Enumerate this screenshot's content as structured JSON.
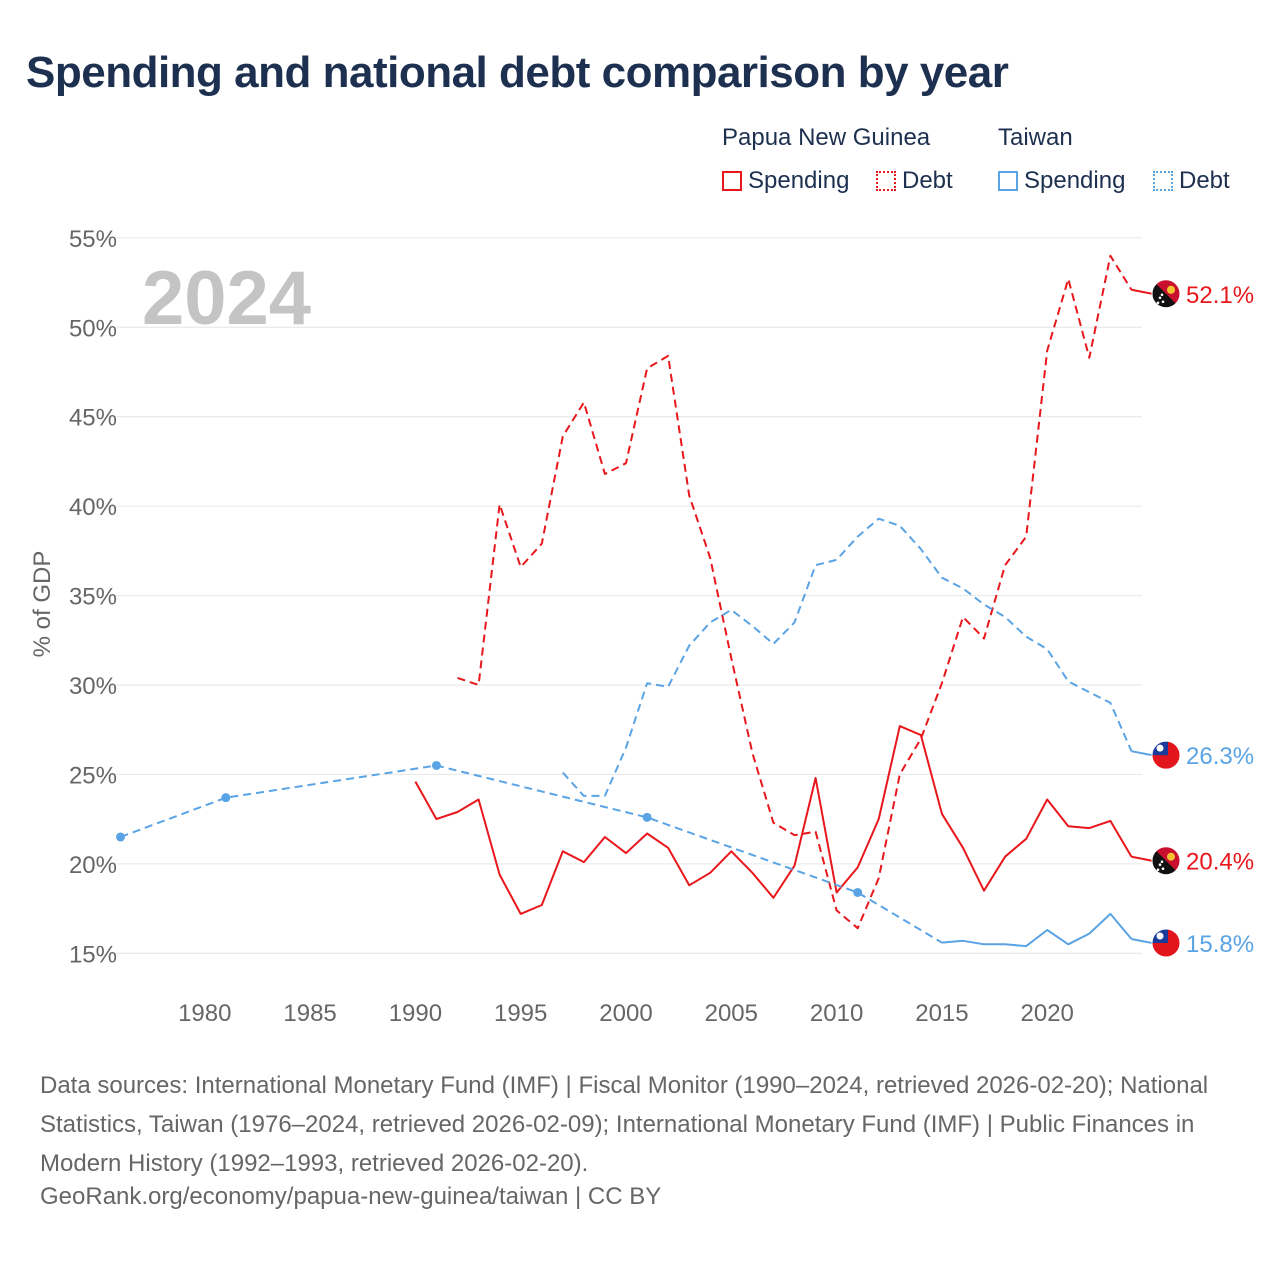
{
  "chart_data": {
    "type": "line",
    "title": "Spending and national debt comparison by year",
    "year_label": "2024",
    "ylabel": "% of GDP",
    "xlabel": "",
    "xlim": [
      1975.5,
      2024.5
    ],
    "ylim": [
      12.5,
      56
    ],
    "y_ticks": [
      15,
      20,
      25,
      30,
      35,
      40,
      45,
      50,
      55
    ],
    "y_tick_labels": [
      "15%",
      "20%",
      "25%",
      "30%",
      "35%",
      "40%",
      "45%",
      "50%",
      "55%"
    ],
    "x_ticks": [
      1980,
      1985,
      1990,
      1995,
      2000,
      2005,
      2010,
      2015,
      2020
    ],
    "x_tick_labels": [
      "1980",
      "1985",
      "1990",
      "1995",
      "2000",
      "2005",
      "2010",
      "2015",
      "2020"
    ],
    "grid": true,
    "legend": {
      "placement": "top-right",
      "groups": [
        {
          "name": "Papua New Guinea",
          "items": [
            "Spending",
            "Debt"
          ],
          "color": "#e8171c"
        },
        {
          "name": "Taiwan",
          "items": [
            "Spending",
            "Debt"
          ],
          "color": "#5aa3e4"
        }
      ]
    },
    "series": [
      {
        "name": "Papua New Guinea Debt",
        "country": "Papua New Guinea",
        "measure": "Debt",
        "color": "#e8171c",
        "dashed": true,
        "end_label": "52.1%",
        "points": [
          [
            1992,
            30.4
          ],
          [
            1993,
            30
          ],
          [
            1994,
            40.1
          ],
          [
            1995,
            36.6
          ],
          [
            1996,
            37.9
          ],
          [
            1997,
            43.9
          ],
          [
            1998,
            45.8
          ],
          [
            1999,
            41.8
          ],
          [
            2000,
            42.4
          ],
          [
            2001,
            47.7
          ],
          [
            2002,
            48.4
          ],
          [
            2003,
            40.6
          ],
          [
            2004,
            37.1
          ],
          [
            2005,
            31.5
          ],
          [
            2006,
            26.2
          ],
          [
            2007,
            22.3
          ],
          [
            2008,
            21.6
          ],
          [
            2009,
            21.8
          ],
          [
            2010,
            17.4
          ],
          [
            2011,
            16.4
          ],
          [
            2012,
            19.2
          ],
          [
            2013,
            25
          ],
          [
            2014,
            27
          ],
          [
            2015,
            30.1
          ],
          [
            2016,
            33.8
          ],
          [
            2017,
            32.6
          ],
          [
            2018,
            36.7
          ],
          [
            2019,
            38.3
          ],
          [
            2020,
            48.7
          ],
          [
            2021,
            52.7
          ],
          [
            2022,
            48.3
          ],
          [
            2023,
            54
          ],
          [
            2024,
            52.1
          ]
        ]
      },
      {
        "name": "Papua New Guinea Spending",
        "country": "Papua New Guinea",
        "measure": "Spending",
        "color": "#e8171c",
        "dashed": false,
        "end_label": "20.4%",
        "points": [
          [
            1990,
            24.6
          ],
          [
            1991,
            22.5
          ],
          [
            1992,
            22.9
          ],
          [
            1993,
            23.6
          ],
          [
            1994,
            19.4
          ],
          [
            1995,
            17.2
          ],
          [
            1996,
            17.7
          ],
          [
            1997,
            20.7
          ],
          [
            1998,
            20.1
          ],
          [
            1999,
            21.5
          ],
          [
            2000,
            20.6
          ],
          [
            2001,
            21.7
          ],
          [
            2002,
            20.9
          ],
          [
            2003,
            18.8
          ],
          [
            2004,
            19.5
          ],
          [
            2005,
            20.7
          ],
          [
            2006,
            19.5
          ],
          [
            2007,
            18.1
          ],
          [
            2008,
            19.9
          ],
          [
            2009,
            24.8
          ],
          [
            2010,
            18.4
          ],
          [
            2011,
            19.8
          ],
          [
            2012,
            22.5
          ],
          [
            2013,
            27.7
          ],
          [
            2014,
            27.2
          ],
          [
            2015,
            22.8
          ],
          [
            2016,
            20.9
          ],
          [
            2017,
            18.5
          ],
          [
            2018,
            20.4
          ],
          [
            2019,
            21.4
          ],
          [
            2020,
            23.6
          ],
          [
            2021,
            22.1
          ],
          [
            2022,
            22
          ],
          [
            2023,
            22.4
          ],
          [
            2024,
            20.4
          ]
        ]
      },
      {
        "name": "Taiwan Debt",
        "country": "Taiwan",
        "measure": "Debt",
        "color": "#5aa3e4",
        "dashed": true,
        "end_label": "26.3%",
        "points": [
          [
            1997,
            25.1
          ],
          [
            1998,
            23.8
          ],
          [
            1999,
            23.8
          ],
          [
            2000,
            26.5
          ],
          [
            2001,
            30.1
          ],
          [
            2002,
            29.9
          ],
          [
            2003,
            32.2
          ],
          [
            2004,
            33.5
          ],
          [
            2005,
            34.2
          ],
          [
            2006,
            33.3
          ],
          [
            2007,
            32.3
          ],
          [
            2008,
            33.5
          ],
          [
            2009,
            36.7
          ],
          [
            2010,
            37
          ],
          [
            2011,
            38.3
          ],
          [
            2012,
            39.3
          ],
          [
            2013,
            38.9
          ],
          [
            2014,
            37.6
          ],
          [
            2015,
            36
          ],
          [
            2016,
            35.4
          ],
          [
            2017,
            34.5
          ],
          [
            2018,
            33.8
          ],
          [
            2019,
            32.7
          ],
          [
            2020,
            32
          ],
          [
            2021,
            30.2
          ],
          [
            2022,
            29.6
          ],
          [
            2023,
            29
          ],
          [
            2024,
            26.3
          ]
        ]
      },
      {
        "name": "Taiwan Spending (sparse)",
        "country": "Taiwan",
        "measure": "Spending",
        "color": "#5aa3e4",
        "dashed": true,
        "markers": true,
        "points": [
          [
            1976,
            21.5
          ],
          [
            1981,
            23.7
          ],
          [
            1991,
            25.5
          ],
          [
            2001,
            22.6
          ],
          [
            2011,
            18.4
          ],
          [
            2015,
            15.6
          ]
        ]
      },
      {
        "name": "Taiwan Spending",
        "country": "Taiwan",
        "measure": "Spending",
        "color": "#5aa3e4",
        "dashed": false,
        "end_label": "15.8%",
        "points": [
          [
            2015,
            15.6
          ],
          [
            2016,
            15.7
          ],
          [
            2017,
            15.5
          ],
          [
            2018,
            15.5
          ],
          [
            2019,
            15.4
          ],
          [
            2020,
            16.3
          ],
          [
            2021,
            15.5
          ],
          [
            2022,
            16.1
          ],
          [
            2023,
            17.2
          ],
          [
            2024,
            15.8
          ]
        ]
      }
    ]
  },
  "sources": "Data sources: International Monetary Fund (IMF) | Fiscal Monitor (1990–2024, retrieved 2026-02-20); National Statistics, Taiwan (1976–2024, retrieved 2026-02-09); International Monetary Fund (IMF) | Public Finances in Modern History (1992–1993, retrieved 2026-02-20).",
  "credit": "GeoRank.org/economy/papua-new-guinea/taiwan | CC BY",
  "icons": {
    "png_flag": "papua-new-guinea-flag-icon",
    "tw_flag": "taiwan-flag-icon"
  }
}
